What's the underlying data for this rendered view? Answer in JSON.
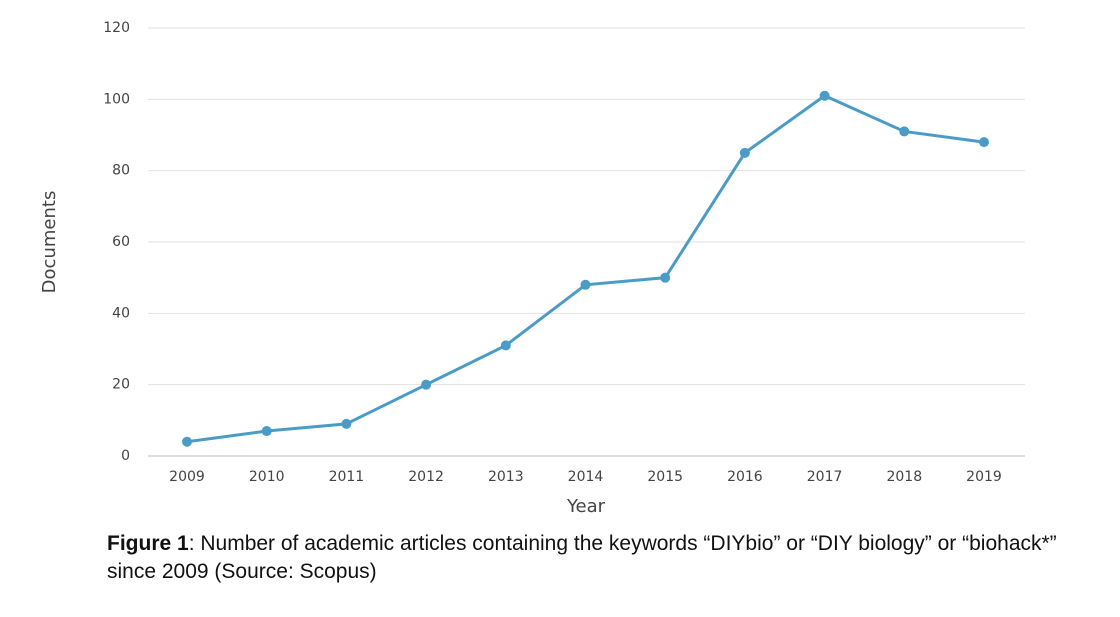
{
  "chart_data": {
    "type": "line",
    "x_label": "Year",
    "y_label": "Documents",
    "categories": [
      "2009",
      "2010",
      "2011",
      "2012",
      "2013",
      "2014",
      "2015",
      "2016",
      "2017",
      "2018",
      "2019"
    ],
    "values": [
      4,
      7,
      9,
      20,
      31,
      48,
      50,
      85,
      101,
      91,
      88
    ],
    "color": "#4a9cc7",
    "ylim": [
      0,
      120
    ],
    "yticks": [
      0,
      20,
      40,
      60,
      80,
      100,
      120
    ],
    "grid": true
  },
  "caption": {
    "label": "Figure 1",
    "text": ": Number of academic articles containing the keywords “DIYbio” or “DIY biology” or “biohack*” since 2009 (Source: Scopus)"
  }
}
